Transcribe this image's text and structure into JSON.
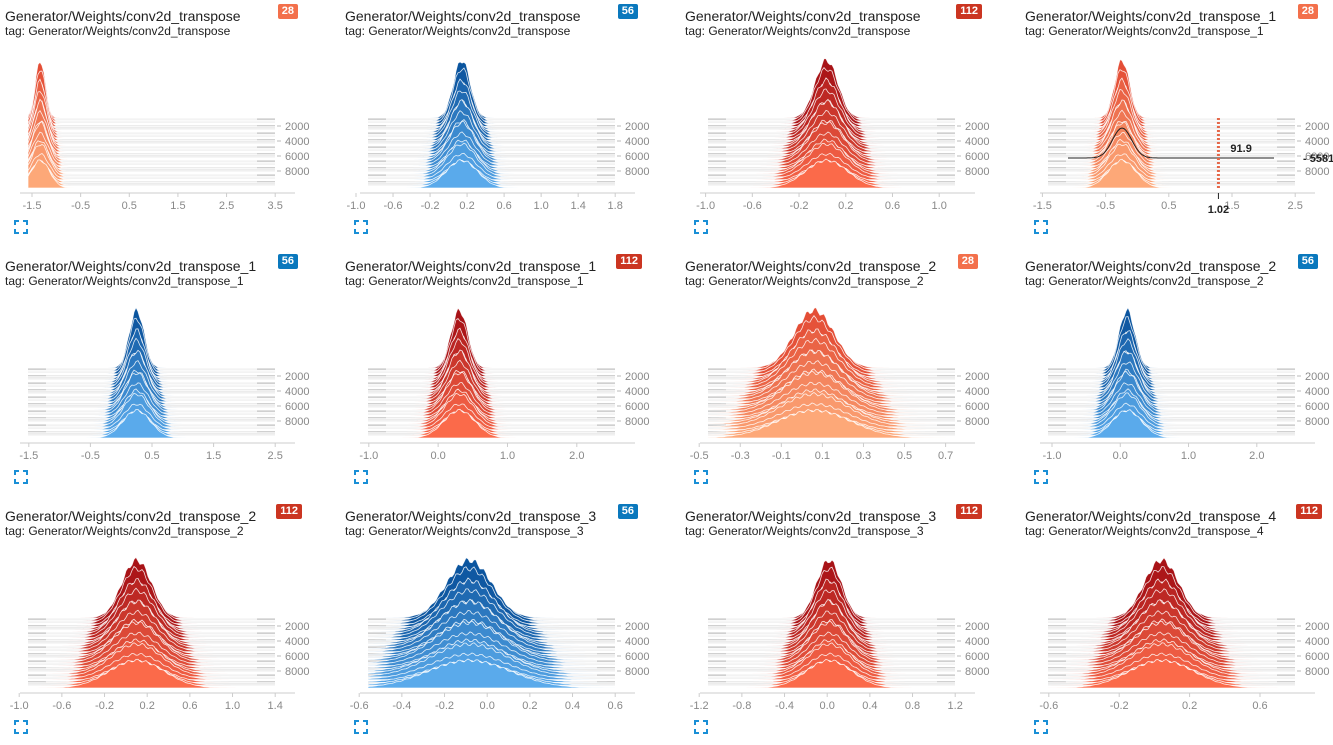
{
  "badge_colors": {
    "28": "#f3704b",
    "56": "#0a78bd",
    "112": "#cb3521"
  },
  "charts": [
    {
      "title": "Generator/Weights/conv2d_transpose",
      "tag": "tag: Generator/Weights/conv2d_transpose",
      "badge": "28",
      "palette": "orange",
      "center": 0.05,
      "spread": 0.1,
      "xticks": [
        "-1.5",
        "-0.5",
        "0.5",
        "1.5",
        "2.5",
        "3.5"
      ],
      "xticks_start": 0.1,
      "xticks_end": 0.86
    },
    {
      "title": "Generator/Weights/conv2d_transpose",
      "tag": "tag: Generator/Weights/conv2d_transpose",
      "badge": "56",
      "palette": "blue",
      "center": 0.38,
      "spread": 0.17,
      "xticks": [
        "-1.0",
        "-0.6",
        "-0.2",
        "0.2",
        "0.6",
        "1.0",
        "1.4",
        "1.8"
      ],
      "xticks_start": 0.05,
      "xticks_end": 0.86
    },
    {
      "title": "Generator/Weights/conv2d_transpose",
      "tag": "tag: Generator/Weights/conv2d_transpose",
      "badge": "112",
      "palette": "red",
      "center": 0.48,
      "spread": 0.23,
      "xticks": [
        "-1.0",
        "-0.6",
        "-0.2",
        "0.2",
        "0.6",
        "1.0"
      ],
      "xticks_start": 0.08,
      "xticks_end": 0.81
    },
    {
      "title": "Generator/Weights/conv2d_transpose_1",
      "tag": "tag: Generator/Weights/conv2d_transpose_1",
      "badge": "28",
      "palette": "orange",
      "center": 0.3,
      "spread": 0.15,
      "xticks": [
        "-1.5",
        "-0.5",
        "0.5",
        "1.5",
        "2.5"
      ],
      "xticks_start": 0.07,
      "xticks_end": 0.86,
      "hover": {
        "value": "91.9",
        "step": "5581",
        "x_value": "1.02"
      }
    },
    {
      "title": "Generator/Weights/conv2d_transpose_1",
      "tag": "tag: Generator/Weights/conv2d_transpose_1",
      "badge": "56",
      "palette": "blue",
      "center": 0.44,
      "spread": 0.15,
      "xticks": [
        "-1.5",
        "-0.5",
        "0.5",
        "1.5",
        "2.5"
      ],
      "xticks_start": 0.09,
      "xticks_end": 0.86
    },
    {
      "title": "Generator/Weights/conv2d_transpose_1",
      "tag": "tag: Generator/Weights/conv2d_transpose_1",
      "badge": "112",
      "palette": "red",
      "center": 0.37,
      "spread": 0.17,
      "xticks": [
        "-1.0",
        "0.0",
        "1.0",
        "2.0"
      ],
      "xticks_start": 0.09,
      "xticks_end": 0.74
    },
    {
      "title": "Generator/Weights/conv2d_transpose_2",
      "tag": "tag: Generator/Weights/conv2d_transpose_2",
      "badge": "28",
      "palette": "orange",
      "center": 0.43,
      "spread": 0.4,
      "xticks": [
        "-0.5",
        "-0.3",
        "-0.1",
        "0.1",
        "0.3",
        "0.5",
        "0.7"
      ],
      "xticks_start": 0.06,
      "xticks_end": 0.83
    },
    {
      "title": "Generator/Weights/conv2d_transpose_2",
      "tag": "tag: Generator/Weights/conv2d_transpose_2",
      "badge": "56",
      "palette": "blue",
      "center": 0.32,
      "spread": 0.16,
      "xticks": [
        "-1.0",
        "0.0",
        "1.0",
        "2.0"
      ],
      "xticks_start": 0.1,
      "xticks_end": 0.74
    },
    {
      "title": "Generator/Weights/conv2d_transpose_2",
      "tag": "tag: Generator/Weights/conv2d_transpose_2",
      "badge": "112",
      "palette": "red",
      "center": 0.44,
      "spread": 0.3,
      "xticks": [
        "-1.0",
        "-0.6",
        "-0.2",
        "0.2",
        "0.6",
        "1.0",
        "1.4"
      ],
      "xticks_start": 0.06,
      "xticks_end": 0.86
    },
    {
      "title": "Generator/Weights/conv2d_transpose_3",
      "tag": "tag: Generator/Weights/conv2d_transpose_3",
      "badge": "56",
      "palette": "blue",
      "center": 0.41,
      "spread": 0.45,
      "xticks": [
        "-0.6",
        "-0.4",
        "-0.2",
        "0.0",
        "0.2",
        "0.4",
        "0.6"
      ],
      "xticks_start": 0.06,
      "xticks_end": 0.86
    },
    {
      "title": "Generator/Weights/conv2d_transpose_3",
      "tag": "tag: Generator/Weights/conv2d_transpose_3",
      "badge": "112",
      "palette": "red",
      "center": 0.49,
      "spread": 0.25,
      "xticks": [
        "-1.2",
        "-0.8",
        "-0.4",
        "0.0",
        "0.4",
        "0.8",
        "1.2"
      ],
      "xticks_start": 0.06,
      "xticks_end": 0.86
    },
    {
      "title": "Generator/Weights/conv2d_transpose_4",
      "tag": "tag: Generator/Weights/conv2d_transpose_4",
      "badge": "112",
      "palette": "red",
      "center": 0.46,
      "spread": 0.35,
      "xticks": [
        "-0.6",
        "-0.2",
        "0.2",
        "0.6"
      ],
      "xticks_start": 0.09,
      "xticks_end": 0.75
    }
  ],
  "y_labels": [
    "2000",
    "4000",
    "6000",
    "8000"
  ],
  "expand_icon": "fullscreen-icon"
}
